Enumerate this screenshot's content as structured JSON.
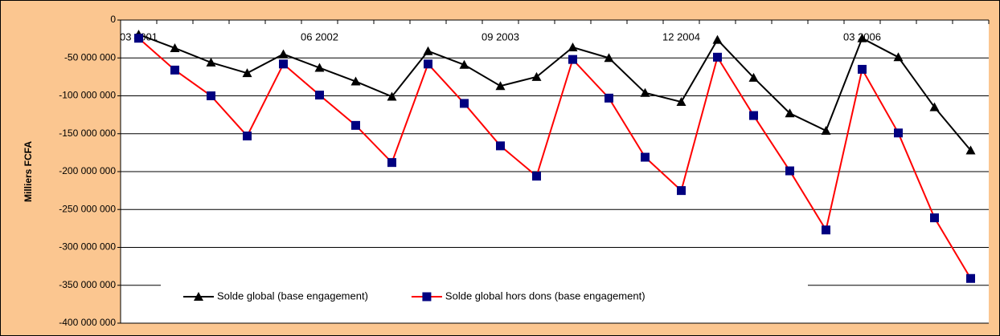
{
  "chart_data": {
    "type": "line",
    "y_label": "Milliers FCFA",
    "categories": [
      "03 2001",
      null,
      null,
      null,
      null,
      "06 2002",
      null,
      null,
      null,
      null,
      "09 2003",
      null,
      null,
      null,
      null,
      "12 2004",
      null,
      null,
      null,
      null,
      "03 2006",
      null,
      null,
      null
    ],
    "series": [
      {
        "name": "Solde global (base engagement)",
        "color": "#000000",
        "marker": "triangle",
        "values": [
          -19000000,
          -37000000,
          -56000000,
          -70000000,
          -45000000,
          -63000000,
          -81000000,
          -101000000,
          -41000000,
          -59000000,
          -87000000,
          -75000000,
          -36000000,
          -50000000,
          -96000000,
          -108000000,
          -26000000,
          -76000000,
          -123000000,
          -146000000,
          -24000000,
          -49000000,
          -115000000,
          -172000000
        ]
      },
      {
        "name": "Solde global hors dons (base engagement)",
        "color": "#ff0000",
        "marker_color": "#000080",
        "marker": "square",
        "values": [
          -24000000,
          -66000000,
          -100000000,
          -153000000,
          -58000000,
          -99000000,
          -139000000,
          -188000000,
          -58000000,
          -110000000,
          -166000000,
          -206000000,
          -52000000,
          -103000000,
          -181000000,
          -225000000,
          -49000000,
          -126000000,
          -199000000,
          -277000000,
          -65000000,
          -149000000,
          -261000000,
          -341000000
        ]
      }
    ],
    "ylim": [
      -400000000,
      0
    ],
    "yticks": [
      {
        "value": -400000000,
        "label": "-400 000 000"
      },
      {
        "value": -350000000,
        "label": "-350 000 000"
      },
      {
        "value": -300000000,
        "label": "-300 000 000"
      },
      {
        "value": -250000000,
        "label": "-250 000 000"
      },
      {
        "value": -200000000,
        "label": "-200 000 000"
      },
      {
        "value": -150000000,
        "label": "-150 000 000"
      },
      {
        "value": -100000000,
        "label": "-100 000 000"
      },
      {
        "value": -50000000,
        "label": "-50 000 000"
      },
      0
    ],
    "grid": true,
    "legend": "bottom"
  }
}
